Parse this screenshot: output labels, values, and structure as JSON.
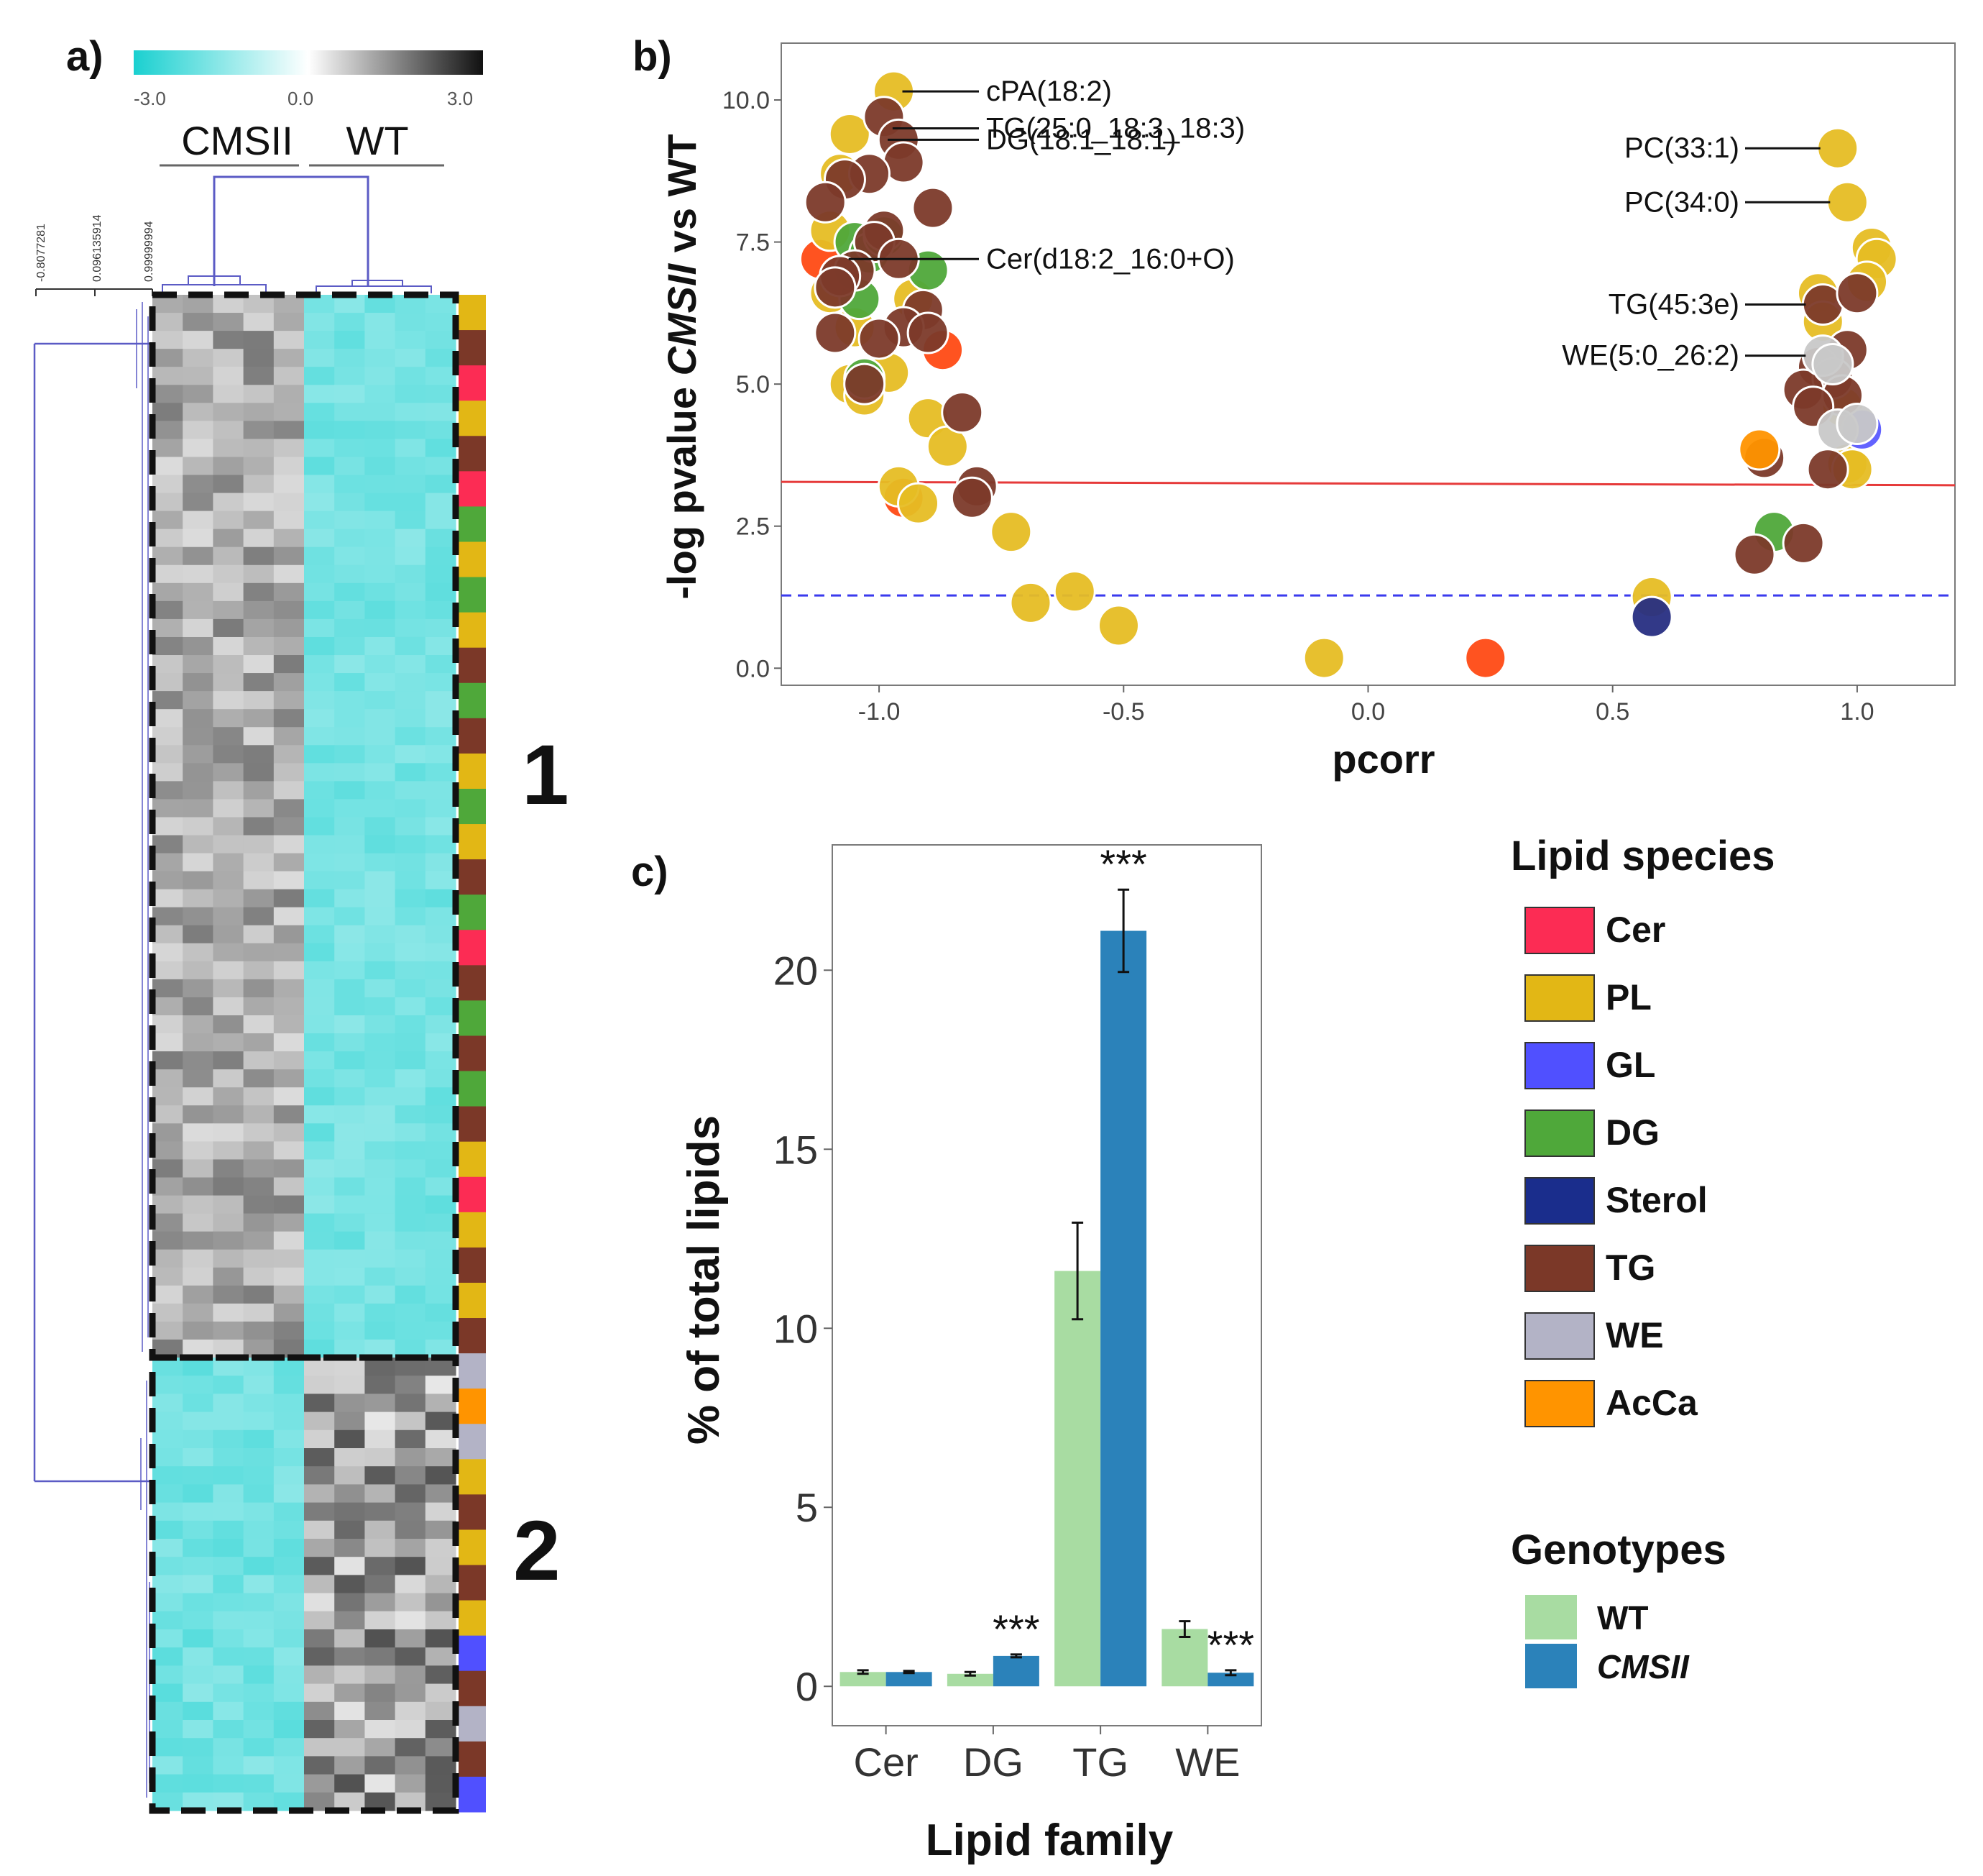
{
  "panel_labels": [
    "a)",
    "b)",
    "c)"
  ],
  "chart_data": [
    {
      "panel": "a)",
      "type": "heatmap",
      "title": "",
      "color_scale": {
        "min_label": "-3.0",
        "mid_label": "0.0",
        "max_label": "3.0",
        "range": [
          -3,
          3
        ],
        "colors": [
          "#1ad0d0",
          "#ffffff",
          "#111111"
        ]
      },
      "column_groups": [
        "CMSII",
        "WT"
      ],
      "dendrogram_heights": [
        "-0.8077281",
        "0.096135914",
        "0.99999994"
      ],
      "cluster_labels": [
        "1",
        "2"
      ],
      "rows_per_cluster": [
        59,
        25
      ],
      "columns_per_group": 5,
      "cluster_pattern": {
        "1": {
          "CMSII": "high (grey, ~0.5 to 1.6)",
          "WT": "low (cyan, ~-1.5 to -2.1)"
        },
        "2": {
          "CMSII": "low (cyan, ~-1.5 to -2.2)",
          "WT": "high (grey, ~0.5 to 2)"
        }
      },
      "row_annotation_species": [
        "PL",
        "TG",
        "Cer",
        "PL",
        "TG",
        "Cer",
        "DG",
        "PL",
        "DG",
        "PL",
        "TG",
        "DG",
        "TG",
        "PL",
        "DG",
        "PL",
        "TG",
        "DG",
        "Cer",
        "TG",
        "DG",
        "TG",
        "DG",
        "TG",
        "PL",
        "Cer",
        "PL",
        "TG",
        "PL",
        "TG",
        "WE",
        "AcCa",
        "WE",
        "PL",
        "TG",
        "PL",
        "TG",
        "PL",
        "GL",
        "TG",
        "WE",
        "TG",
        "GL"
      ]
    },
    {
      "panel": "b)",
      "type": "scatter",
      "title": "",
      "xlabel": "pcorr",
      "ylabel_parts": [
        "-log pvalue ",
        "CMSII",
        " vs WT"
      ],
      "xlim": [
        -1.2,
        1.2
      ],
      "ylim": [
        -0.3,
        11
      ],
      "xticks": [
        -1.0,
        -0.5,
        0.0,
        0.5,
        1.0
      ],
      "xtick_labels": [
        "-1.0",
        "-0.5",
        "0.0",
        "0.5",
        "1.0"
      ],
      "yticks": [
        0.0,
        2.5,
        5.0,
        7.5,
        10.0
      ],
      "ytick_labels": [
        "0.0",
        "2.5",
        "5.0",
        "7.5",
        "10.0"
      ],
      "reference_lines": [
        {
          "style": "solid",
          "color": "#e63a3a",
          "y_start": 3.28,
          "y_end": 3.22
        },
        {
          "style": "dashed",
          "color": "#3a3aee",
          "y_start": 1.28,
          "y_end": 1.28
        }
      ],
      "annotations": [
        {
          "text": "cPA(18:2)",
          "x": -0.97,
          "y": 10.15,
          "side": "right"
        },
        {
          "text": "TG(25:0_18:3_18:3)",
          "x": -0.99,
          "y": 9.5,
          "side": "right"
        },
        {
          "text": "DG(18:1_18:1)",
          "x": -1.0,
          "y": 9.3,
          "side": "right"
        },
        {
          "text": "Cer(d18:2_16:0+O)",
          "x": -1.08,
          "y": 7.2,
          "side": "right"
        },
        {
          "text": "PC(33:1)",
          "x": 0.96,
          "y": 9.15,
          "side": "left"
        },
        {
          "text": "PC(34:0)",
          "x": 0.98,
          "y": 8.2,
          "side": "left"
        },
        {
          "text": "TG(45:3e)",
          "x": 0.93,
          "y": 6.4,
          "side": "left"
        },
        {
          "text": "WE(5:0_26:2)",
          "x": 0.93,
          "y": 5.5,
          "side": "left"
        }
      ],
      "points": [
        {
          "x": -1.12,
          "y": 7.2,
          "species": "Cer"
        },
        {
          "x": -0.87,
          "y": 5.6,
          "species": "Cer"
        },
        {
          "x": -0.95,
          "y": 3.0,
          "species": "Cer"
        },
        {
          "x": 0.24,
          "y": 0.18,
          "species": "Cer"
        },
        {
          "x": -0.97,
          "y": 10.15,
          "species": "PL"
        },
        {
          "x": -1.06,
          "y": 9.4,
          "species": "PL"
        },
        {
          "x": -1.08,
          "y": 8.7,
          "species": "PL"
        },
        {
          "x": -1.1,
          "y": 7.7,
          "species": "PL"
        },
        {
          "x": -1.1,
          "y": 6.6,
          "species": "PL"
        },
        {
          "x": -1.05,
          "y": 6.0,
          "species": "PL"
        },
        {
          "x": -0.93,
          "y": 6.5,
          "species": "PL"
        },
        {
          "x": -0.98,
          "y": 5.2,
          "species": "PL"
        },
        {
          "x": -1.06,
          "y": 5.0,
          "species": "PL"
        },
        {
          "x": -1.03,
          "y": 4.8,
          "species": "PL"
        },
        {
          "x": -0.9,
          "y": 4.4,
          "species": "PL"
        },
        {
          "x": -0.86,
          "y": 3.9,
          "species": "PL"
        },
        {
          "x": -0.96,
          "y": 3.2,
          "species": "PL"
        },
        {
          "x": -0.92,
          "y": 2.9,
          "species": "PL"
        },
        {
          "x": -0.73,
          "y": 2.4,
          "species": "PL"
        },
        {
          "x": -0.69,
          "y": 1.15,
          "species": "PL"
        },
        {
          "x": -0.6,
          "y": 1.35,
          "species": "PL"
        },
        {
          "x": -0.51,
          "y": 0.75,
          "species": "PL"
        },
        {
          "x": -0.09,
          "y": 0.18,
          "species": "PL"
        },
        {
          "x": 0.58,
          "y": 1.25,
          "species": "PL"
        },
        {
          "x": 0.96,
          "y": 9.15,
          "species": "PL"
        },
        {
          "x": 0.98,
          "y": 8.2,
          "species": "PL"
        },
        {
          "x": 1.03,
          "y": 7.4,
          "species": "PL"
        },
        {
          "x": 1.04,
          "y": 7.2,
          "species": "PL"
        },
        {
          "x": 1.02,
          "y": 6.8,
          "species": "PL"
        },
        {
          "x": 0.92,
          "y": 6.6,
          "species": "PL"
        },
        {
          "x": 0.93,
          "y": 6.1,
          "species": "PL"
        },
        {
          "x": 0.97,
          "y": 4.6,
          "species": "PL"
        },
        {
          "x": 0.98,
          "y": 3.6,
          "species": "PL"
        },
        {
          "x": 0.99,
          "y": 3.5,
          "species": "PL"
        },
        {
          "x": 1.01,
          "y": 4.2,
          "species": "GL"
        },
        {
          "x": -1.05,
          "y": 7.5,
          "species": "DG"
        },
        {
          "x": -1.02,
          "y": 7.3,
          "species": "DG"
        },
        {
          "x": -0.99,
          "y": 7.6,
          "species": "DG"
        },
        {
          "x": -1.04,
          "y": 6.5,
          "species": "DG"
        },
        {
          "x": -0.9,
          "y": 7.0,
          "species": "DG"
        },
        {
          "x": -1.03,
          "y": 5.1,
          "species": "DG"
        },
        {
          "x": 0.83,
          "y": 2.4,
          "species": "DG"
        },
        {
          "x": 0.58,
          "y": 0.9,
          "species": "Sterol"
        },
        {
          "x": -0.99,
          "y": 9.7,
          "species": "TG"
        },
        {
          "x": -0.96,
          "y": 9.3,
          "species": "TG"
        },
        {
          "x": -0.95,
          "y": 8.9,
          "species": "TG"
        },
        {
          "x": -1.02,
          "y": 8.7,
          "species": "TG"
        },
        {
          "x": -1.07,
          "y": 8.6,
          "species": "TG"
        },
        {
          "x": -1.11,
          "y": 8.2,
          "species": "TG"
        },
        {
          "x": -0.89,
          "y": 8.1,
          "species": "TG"
        },
        {
          "x": -0.99,
          "y": 7.7,
          "species": "TG"
        },
        {
          "x": -1.01,
          "y": 7.5,
          "species": "TG"
        },
        {
          "x": -1.05,
          "y": 7.0,
          "species": "TG"
        },
        {
          "x": -0.96,
          "y": 7.2,
          "species": "TG"
        },
        {
          "x": -1.08,
          "y": 6.9,
          "species": "TG"
        },
        {
          "x": -1.09,
          "y": 6.7,
          "species": "TG"
        },
        {
          "x": -0.91,
          "y": 6.3,
          "species": "TG"
        },
        {
          "x": -0.95,
          "y": 6.0,
          "species": "TG"
        },
        {
          "x": -1.0,
          "y": 5.8,
          "species": "TG"
        },
        {
          "x": -1.09,
          "y": 5.9,
          "species": "TG"
        },
        {
          "x": -0.9,
          "y": 5.9,
          "species": "TG"
        },
        {
          "x": -1.03,
          "y": 5.0,
          "species": "TG"
        },
        {
          "x": -0.83,
          "y": 4.5,
          "species": "TG"
        },
        {
          "x": -0.8,
          "y": 3.2,
          "species": "TG"
        },
        {
          "x": -0.81,
          "y": 3.0,
          "species": "TG"
        },
        {
          "x": 0.93,
          "y": 6.4,
          "species": "TG"
        },
        {
          "x": 1.0,
          "y": 6.6,
          "species": "TG"
        },
        {
          "x": 0.98,
          "y": 5.6,
          "species": "TG"
        },
        {
          "x": 0.92,
          "y": 5.3,
          "species": "TG"
        },
        {
          "x": 0.95,
          "y": 5.1,
          "species": "TG"
        },
        {
          "x": 0.89,
          "y": 4.9,
          "species": "TG"
        },
        {
          "x": 0.97,
          "y": 4.8,
          "species": "TG"
        },
        {
          "x": 0.91,
          "y": 4.6,
          "species": "TG"
        },
        {
          "x": 0.81,
          "y": 3.7,
          "species": "TG"
        },
        {
          "x": 0.94,
          "y": 3.5,
          "species": "TG"
        },
        {
          "x": 0.89,
          "y": 2.2,
          "species": "TG"
        },
        {
          "x": 0.79,
          "y": 2.0,
          "species": "TG"
        },
        {
          "x": 0.93,
          "y": 5.5,
          "species": "WE"
        },
        {
          "x": 0.95,
          "y": 5.35,
          "species": "WE"
        },
        {
          "x": 0.96,
          "y": 4.2,
          "species": "WE"
        },
        {
          "x": 1.0,
          "y": 4.3,
          "species": "WE"
        },
        {
          "x": 0.8,
          "y": 3.85,
          "species": "AcCa"
        }
      ]
    },
    {
      "panel": "c)",
      "type": "bar",
      "title": "",
      "xlabel": "Lipid family",
      "ylabel": "% of total lipids",
      "ylim": [
        -1.1,
        23.5
      ],
      "yticks": [
        0,
        5,
        10,
        15,
        20
      ],
      "ytick_labels": [
        "0",
        "5",
        "10",
        "15",
        "20"
      ],
      "categories": [
        "Cer",
        "DG",
        "TG",
        "WE"
      ],
      "series": [
        {
          "name": "WT",
          "color": "#a8dca2",
          "values": [
            0.4,
            0.35,
            11.6,
            1.6
          ],
          "errors": [
            0.05,
            0.05,
            1.35,
            0.22
          ]
        },
        {
          "name": "CMSII",
          "color": "#2b82ba",
          "values": [
            0.4,
            0.85,
            21.1,
            0.38
          ],
          "errors": [
            0.03,
            0.04,
            1.15,
            0.07
          ]
        }
      ],
      "significance": [
        {
          "category": "DG",
          "series": "CMSII",
          "label": "***"
        },
        {
          "category": "TG",
          "series": "CMSII",
          "label": "***"
        },
        {
          "category": "WE",
          "series": "CMSII",
          "label": "***"
        }
      ]
    }
  ],
  "legend": {
    "species_title": "Lipid species",
    "species": [
      {
        "label": "Cer",
        "color": "#fc2c54"
      },
      {
        "label": "PL",
        "color": "#e2b715"
      },
      {
        "label": "GL",
        "color": "#5050ff"
      },
      {
        "label": "DG",
        "color": "#4fa83a"
      },
      {
        "label": "Sterol",
        "color": "#1a2d8c"
      },
      {
        "label": "TG",
        "color": "#7b3828"
      },
      {
        "label": "WE",
        "color": "#b3b3c6"
      },
      {
        "label": "AcCa",
        "color": "#ff9400"
      }
    ],
    "genotypes_title": "Genotypes",
    "genotypes": [
      {
        "label": "WT",
        "color": "#a8dca2",
        "italic": false
      },
      {
        "label": "CMSII",
        "color": "#2b82ba",
        "italic": true
      }
    ]
  },
  "point_colors": {
    "Cer": "#ff4a14",
    "PL": "#e6bd24",
    "GL": "#5a5aff",
    "DG": "#4fa83a",
    "Sterol": "#272e82",
    "TG": "#7c3a2a",
    "WE": "#c8c8c8",
    "AcCa": "#ff9400"
  }
}
